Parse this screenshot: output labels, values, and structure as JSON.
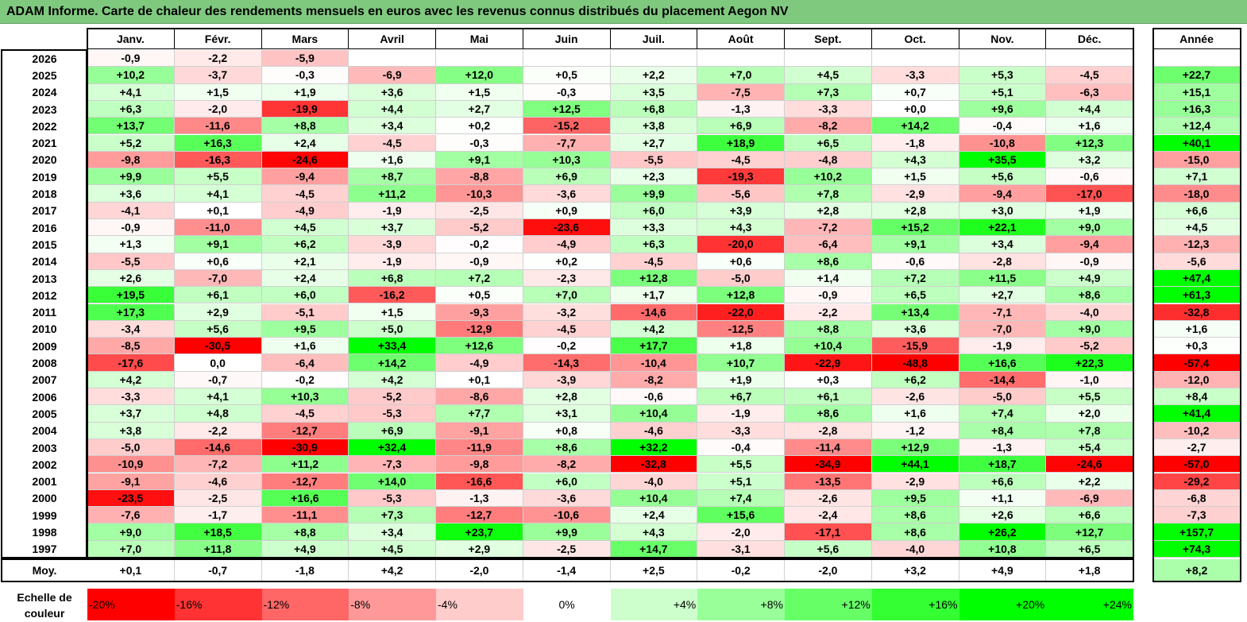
{
  "title": "ADAM Informe. Carte de chaleur des rendements mensuels en euros avec les revenus connus distribués du placement Aegon NV",
  "chart_data": {
    "type": "heatmap",
    "months": [
      "Janv.",
      "Févr.",
      "Mars",
      "Avril",
      "Mai",
      "Juin",
      "Juil.",
      "Août",
      "Sept.",
      "Oct.",
      "Nov.",
      "Déc."
    ],
    "year_header": "Année",
    "rows": [
      {
        "year": "2026",
        "values": [
          "-0,9",
          "-2,2",
          "-5,9",
          "",
          "",
          "",
          "",
          "",
          "",
          "",
          "",
          ""
        ],
        "annual": ""
      },
      {
        "year": "2025",
        "values": [
          "+10,2",
          "-3,7",
          "-0,3",
          "-6,9",
          "+12,0",
          "+0,5",
          "+2,2",
          "+7,0",
          "+4,5",
          "-3,3",
          "+5,3",
          "-4,5"
        ],
        "annual": "+22,7"
      },
      {
        "year": "2024",
        "values": [
          "+4,1",
          "+1,5",
          "+1,9",
          "+3,6",
          "+1,5",
          "-0,3",
          "+3,5",
          "-7,5",
          "+7,3",
          "+0,7",
          "+5,1",
          "-6,3"
        ],
        "annual": "+15,1"
      },
      {
        "year": "2023",
        "values": [
          "+6,3",
          "-2,0",
          "-19,9",
          "+4,4",
          "+2,7",
          "+12,5",
          "+6,8",
          "-1,3",
          "-3,3",
          "+0,0",
          "+9,6",
          "+4,4"
        ],
        "annual": "+16,3"
      },
      {
        "year": "2022",
        "values": [
          "+13,7",
          "-11,6",
          "+8,8",
          "+3,4",
          "+0,2",
          "-15,2",
          "+3,8",
          "+6,9",
          "-8,2",
          "+14,2",
          "-0,4",
          "+1,6"
        ],
        "annual": "+12,4"
      },
      {
        "year": "2021",
        "values": [
          "+5,2",
          "+16,3",
          "+2,4",
          "-4,5",
          "-0,3",
          "-7,7",
          "+2,7",
          "+18,9",
          "+6,5",
          "-1,8",
          "-10,8",
          "+12,3"
        ],
        "annual": "+40,1"
      },
      {
        "year": "2020",
        "values": [
          "-9,8",
          "-16,3",
          "-24,6",
          "+1,6",
          "+9,1",
          "+10,3",
          "-5,5",
          "-4,5",
          "-4,8",
          "+4,3",
          "+35,5",
          "+3,2"
        ],
        "annual": "-15,0"
      },
      {
        "year": "2019",
        "values": [
          "+9,9",
          "+5,5",
          "-9,4",
          "+8,7",
          "-8,8",
          "+6,9",
          "+2,3",
          "-19,3",
          "+10,2",
          "+1,5",
          "+5,6",
          "-0,6"
        ],
        "annual": "+7,1"
      },
      {
        "year": "2018",
        "values": [
          "+3,6",
          "+4,1",
          "-4,5",
          "+11,2",
          "-10,3",
          "-3,6",
          "+9,9",
          "-5,6",
          "+7,8",
          "-2,9",
          "-9,4",
          "-17,0"
        ],
        "annual": "-18,0"
      },
      {
        "year": "2017",
        "values": [
          "-4,1",
          "+0,1",
          "-4,9",
          "-1,9",
          "-2,5",
          "+0,9",
          "+6,0",
          "+3,9",
          "+2,8",
          "+2,8",
          "+3,0",
          "+1,9"
        ],
        "annual": "+6,6"
      },
      {
        "year": "2016",
        "values": [
          "-0,9",
          "-11,0",
          "+4,5",
          "+3,7",
          "-5,2",
          "-23,6",
          "+3,3",
          "+4,3",
          "-7,2",
          "+15,2",
          "+22,1",
          "+9,0"
        ],
        "annual": "+4,5"
      },
      {
        "year": "2015",
        "values": [
          "+1,3",
          "+9,1",
          "+6,2",
          "-3,9",
          "-0,2",
          "-4,9",
          "+6,3",
          "-20,0",
          "-6,4",
          "+9,1",
          "+3,4",
          "-9,4"
        ],
        "annual": "-12,3"
      },
      {
        "year": "2014",
        "values": [
          "-5,5",
          "+0,6",
          "+2,1",
          "-1,9",
          "-0,9",
          "+0,2",
          "-4,5",
          "+0,6",
          "+8,6",
          "-0,6",
          "-2,8",
          "-0,9"
        ],
        "annual": "-5,6"
      },
      {
        "year": "2013",
        "values": [
          "+2,6",
          "-7,0",
          "+2,4",
          "+6,8",
          "+7,2",
          "-2,3",
          "+12,8",
          "-5,0",
          "+1,4",
          "+7,2",
          "+11,5",
          "+4,9"
        ],
        "annual": "+47,4"
      },
      {
        "year": "2012",
        "values": [
          "+19,5",
          "+6,1",
          "+6,0",
          "-16,2",
          "+0,5",
          "+7,0",
          "+1,7",
          "+12,8",
          "-0,9",
          "+6,5",
          "+2,7",
          "+8,6"
        ],
        "annual": "+61,3"
      },
      {
        "year": "2011",
        "values": [
          "+17,3",
          "+2,9",
          "-5,1",
          "+1,5",
          "-9,3",
          "-3,2",
          "-14,6",
          "-22,0",
          "-2,2",
          "+13,4",
          "-7,1",
          "-4,0"
        ],
        "annual": "-32,8"
      },
      {
        "year": "2010",
        "values": [
          "-3,4",
          "+5,6",
          "+9,5",
          "+5,0",
          "-12,9",
          "-4,5",
          "+4,2",
          "-12,5",
          "+8,8",
          "+3,6",
          "-7,0",
          "+9,0"
        ],
        "annual": "+1,6"
      },
      {
        "year": "2009",
        "values": [
          "-8,5",
          "-30,5",
          "+1,6",
          "+33,4",
          "+12,6",
          "-0,2",
          "+17,7",
          "+1,8",
          "+10,4",
          "-15,9",
          "-1,9",
          "-5,2"
        ],
        "annual": "+0,3"
      },
      {
        "year": "2008",
        "values": [
          "-17,6",
          "0,0",
          "-6,4",
          "+14,2",
          "-4,9",
          "-14,3",
          "-10,4",
          "+10,7",
          "-22,9",
          "-48,8",
          "+16,6",
          "+22,3"
        ],
        "annual": "-57,4"
      },
      {
        "year": "2007",
        "values": [
          "+4,2",
          "-0,7",
          "-0,2",
          "+4,2",
          "+0,1",
          "-3,9",
          "-8,2",
          "+1,9",
          "+0,3",
          "+6,2",
          "-14,4",
          "-1,0"
        ],
        "annual": "-12,0"
      },
      {
        "year": "2006",
        "values": [
          "-3,3",
          "+4,1",
          "+10,3",
          "-5,2",
          "-8,6",
          "+2,8",
          "-0,6",
          "+6,7",
          "+6,1",
          "-2,6",
          "-5,0",
          "+5,5"
        ],
        "annual": "+8,4"
      },
      {
        "year": "2005",
        "values": [
          "+3,7",
          "+4,8",
          "-4,5",
          "-5,3",
          "+7,7",
          "+3,1",
          "+10,4",
          "-1,9",
          "+8,6",
          "+1,6",
          "+7,4",
          "+2,0"
        ],
        "annual": "+41,4"
      },
      {
        "year": "2004",
        "values": [
          "+3,8",
          "-2,2",
          "-12,7",
          "+6,9",
          "-9,1",
          "+0,8",
          "-4,6",
          "-3,3",
          "-2,8",
          "-1,2",
          "+8,4",
          "+7,8"
        ],
        "annual": "-10,2"
      },
      {
        "year": "2003",
        "values": [
          "-5,0",
          "-14,6",
          "-30,9",
          "+32,4",
          "-11,9",
          "+8,6",
          "+32,2",
          "-0,4",
          "-11,4",
          "+12,9",
          "-1,3",
          "+5,4"
        ],
        "annual": "-2,7"
      },
      {
        "year": "2002",
        "values": [
          "-10,9",
          "-7,2",
          "+11,2",
          "-7,3",
          "-9,8",
          "-8,2",
          "-32,8",
          "+5,5",
          "-34,9",
          "+44,1",
          "+18,7",
          "-24,6"
        ],
        "annual": "-57,0"
      },
      {
        "year": "2001",
        "values": [
          "-9,1",
          "-4,6",
          "-12,7",
          "+14,0",
          "-16,6",
          "+6,0",
          "-4,0",
          "+5,1",
          "-13,5",
          "-2,9",
          "+6,6",
          "+2,2"
        ],
        "annual": "-29,2"
      },
      {
        "year": "2000",
        "values": [
          "-23,5",
          "-2,5",
          "+16,6",
          "-5,3",
          "-1,3",
          "-3,6",
          "+10,4",
          "+7,4",
          "-2,6",
          "+9,5",
          "+1,1",
          "-6,9"
        ],
        "annual": "-6,8"
      },
      {
        "year": "1999",
        "values": [
          "-7,6",
          "-1,7",
          "-11,1",
          "+7,3",
          "-12,7",
          "-10,6",
          "+2,4",
          "+15,6",
          "-2,4",
          "+8,6",
          "+2,6",
          "+6,6"
        ],
        "annual": "-7,3"
      },
      {
        "year": "1998",
        "values": [
          "+9,0",
          "+18,5",
          "+8,8",
          "+3,4",
          "+23,7",
          "+9,9",
          "+4,3",
          "-2,0",
          "-17,1",
          "+8,6",
          "+26,2",
          "+12,7"
        ],
        "annual": "+157,7"
      },
      {
        "year": "1997",
        "values": [
          "+7,0",
          "+11,8",
          "+4,9",
          "+4,5",
          "+2,9",
          "-2,5",
          "+14,7",
          "-3,1",
          "+5,6",
          "-4,0",
          "+10,8",
          "+6,5"
        ],
        "annual": "+74,3"
      }
    ],
    "average": {
      "label": "Moy.",
      "values": [
        "+0,1",
        "-0,7",
        "-1,8",
        "+4,2",
        "-2,0",
        "-1,4",
        "+2,5",
        "-0,2",
        "-2,0",
        "+3,2",
        "+4,9",
        "+1,8"
      ],
      "annual": "+8,2"
    },
    "color_scale": {
      "label": "Echelle de couleur",
      "steps": [
        "-20%",
        "-16%",
        "-12%",
        "-8%",
        "-4%",
        "0%",
        "+4%",
        "+8%",
        "+12%",
        "+16%",
        "+20%",
        "+24%"
      ]
    },
    "colors": {
      "negative_max": "#ff0000",
      "neutral": "#ffffff",
      "positive_max": "#00ff00",
      "title_bg": "#7fc97f"
    }
  }
}
